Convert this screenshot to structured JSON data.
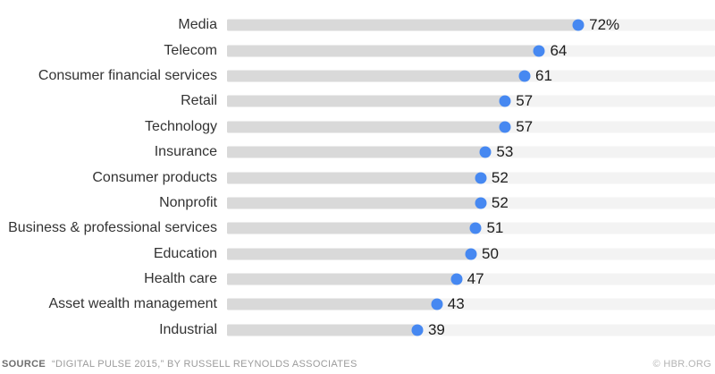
{
  "chart_data": {
    "type": "bar",
    "orientation": "horizontal",
    "categories": [
      "Media",
      "Telecom",
      "Consumer financial services",
      "Retail",
      "Technology",
      "Insurance",
      "Consumer products",
      "Nonprofit",
      "Business & professional services",
      "Education",
      "Health care",
      "Asset wealth management",
      "Industrial"
    ],
    "values": [
      72,
      64,
      61,
      57,
      57,
      53,
      52,
      52,
      51,
      50,
      47,
      43,
      39
    ],
    "value_labels": [
      "72%",
      "64",
      "61",
      "57",
      "57",
      "53",
      "52",
      "52",
      "51",
      "50",
      "47",
      "43",
      "39"
    ],
    "title": "",
    "xlabel": "",
    "ylabel": "",
    "xlim": [
      0,
      100
    ],
    "grid": false,
    "legend": false,
    "colors": {
      "dot": "#4688f1",
      "bar_fill": "#d9d9d9",
      "bar_track": "#f3f3f3",
      "label_text": "#333333",
      "value_text": "#1c1c1c"
    }
  },
  "footer": {
    "source_label": "SOURCE",
    "source_text": "“DIGITAL PULSE 2015,” BY RUSSELL REYNOLDS ASSOCIATES",
    "credit": "© HBR.ORG"
  }
}
